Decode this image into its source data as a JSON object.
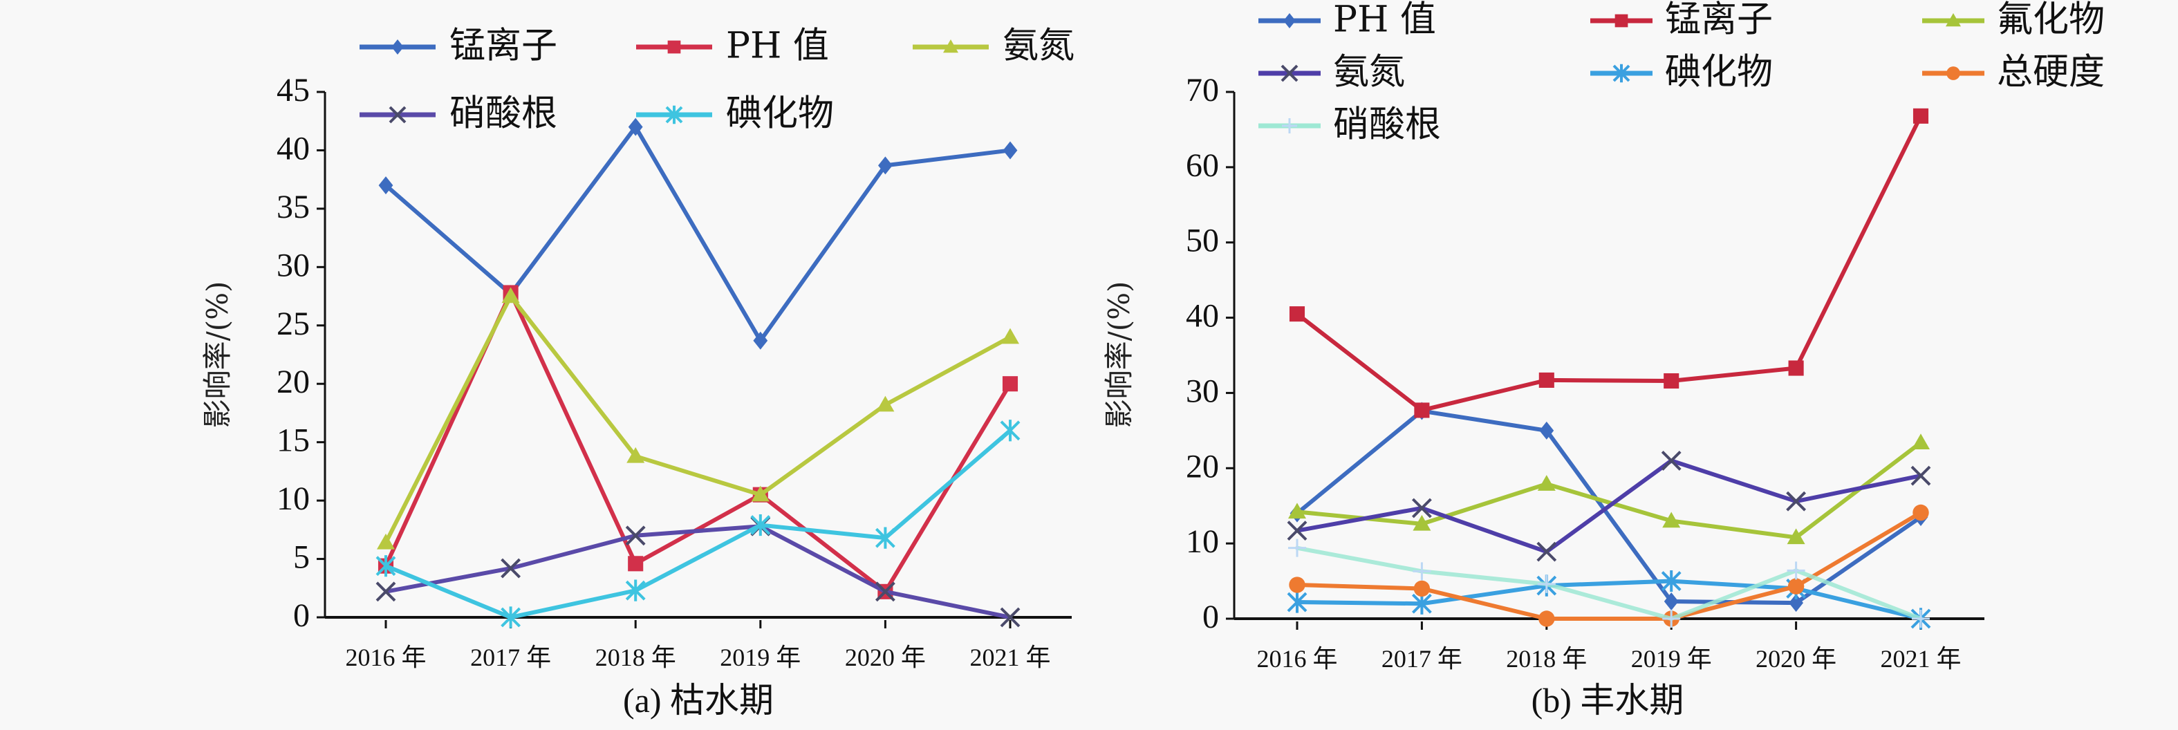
{
  "chart_data": [
    {
      "type": "line",
      "title": "(a) 枯水期",
      "xlabel": "",
      "ylabel": "影响率/(%)",
      "categories": [
        "2016 年",
        "2017 年",
        "2018 年",
        "2019 年",
        "2020 年",
        "2021 年"
      ],
      "ylim": [
        0,
        45
      ],
      "yticks": [
        0,
        5,
        10,
        15,
        20,
        25,
        30,
        35,
        40,
        45
      ],
      "grid": false,
      "legend_position": "top",
      "series": [
        {
          "name": "锰离子",
          "color": "#3d6cc0",
          "marker": "diamond",
          "values": [
            37.0,
            27.7,
            42.0,
            23.7,
            38.7,
            40.0
          ]
        },
        {
          "name": "PH 值",
          "color": "#d2304a",
          "marker": "square",
          "values": [
            4.4,
            27.8,
            4.6,
            10.5,
            2.2,
            20.0
          ]
        },
        {
          "name": "氨氮",
          "color": "#b8c840",
          "marker": "triangle",
          "values": [
            6.4,
            27.5,
            13.8,
            10.5,
            18.2,
            24.0
          ]
        },
        {
          "name": "硝酸根",
          "color": "#5a4aa8",
          "marker": "x",
          "values": [
            2.2,
            4.2,
            7.0,
            7.8,
            2.2,
            0.0
          ]
        },
        {
          "name": "碘化物",
          "color": "#3ec4e0",
          "marker": "star",
          "values": [
            4.4,
            0.0,
            2.3,
            7.9,
            6.8,
            16.0
          ]
        }
      ]
    },
    {
      "type": "line",
      "title": "(b) 丰水期",
      "xlabel": "",
      "ylabel": "影响率/(%)",
      "categories": [
        "2016 年",
        "2017 年",
        "2018 年",
        "2019 年",
        "2020 年",
        "2021 年"
      ],
      "ylim": [
        0,
        70
      ],
      "yticks": [
        0,
        10,
        20,
        30,
        40,
        50,
        60,
        70
      ],
      "grid": false,
      "legend_position": "top",
      "series": [
        {
          "name": "PH 值",
          "color": "#3d6cc0",
          "marker": "diamond",
          "values": [
            14.0,
            27.6,
            25.0,
            2.3,
            2.1,
            13.5
          ]
        },
        {
          "name": "锰离子",
          "color": "#c8283e",
          "marker": "square",
          "values": [
            40.5,
            27.7,
            31.7,
            31.6,
            33.3,
            66.8
          ]
        },
        {
          "name": "氟化物",
          "color": "#a6c43a",
          "marker": "triangle",
          "values": [
            14.2,
            12.6,
            17.9,
            13.0,
            10.8,
            23.4
          ]
        },
        {
          "name": "氨氮",
          "color": "#4e3ea8",
          "marker": "x",
          "values": [
            11.7,
            14.7,
            8.9,
            21.0,
            15.6,
            19.0
          ]
        },
        {
          "name": "碘化物",
          "color": "#3aa0e0",
          "marker": "star",
          "values": [
            2.2,
            2.0,
            4.4,
            5.0,
            4.0,
            0.0
          ]
        },
        {
          "name": "总硬度",
          "color": "#ee7a30",
          "marker": "circle",
          "values": [
            4.5,
            4.0,
            0.0,
            0.0,
            4.3,
            14.1
          ]
        },
        {
          "name": "硝酸根",
          "color": "#9ee8d4",
          "marker": "plus",
          "values": [
            9.4,
            6.3,
            4.6,
            0.0,
            6.4,
            0.0
          ]
        }
      ]
    }
  ]
}
